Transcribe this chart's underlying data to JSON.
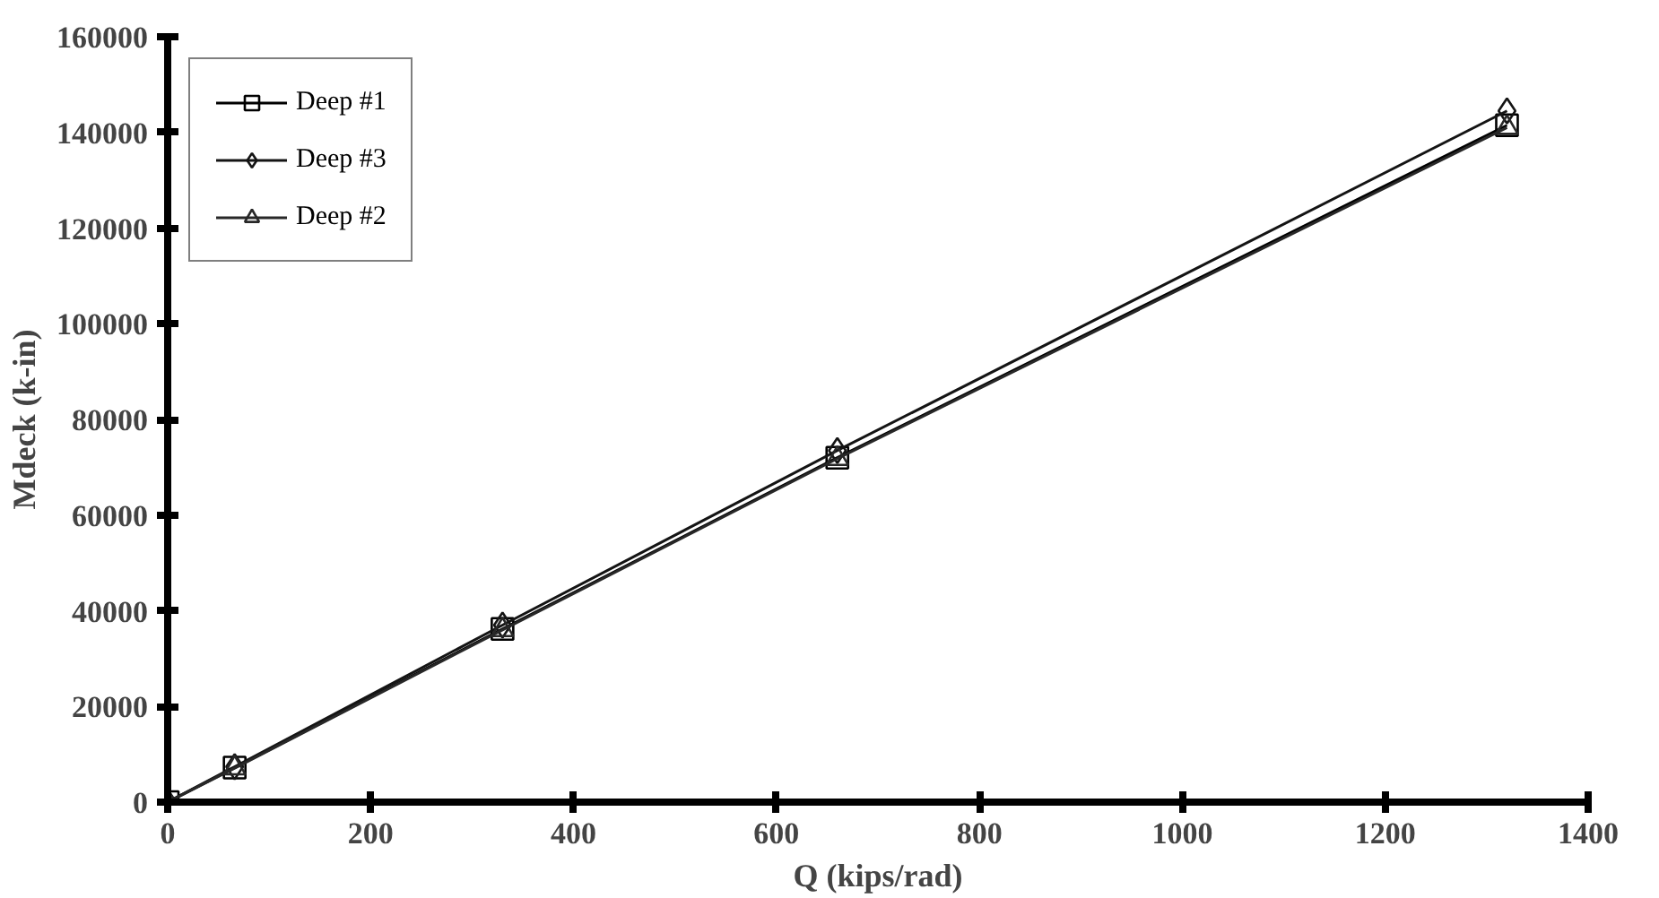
{
  "chart_data": {
    "type": "line",
    "xlabel": "Q (kips/rad)",
    "ylabel": "Mdeck (k-in)",
    "x": [
      0,
      66,
      330,
      660,
      1320
    ],
    "series": [
      {
        "name": "Deep #1",
        "color": "#000000",
        "marker": "square",
        "values": [
          0,
          7200,
          36200,
          72000,
          141500
        ]
      },
      {
        "name": "Deep #3",
        "color": "#141414",
        "marker": "diamond",
        "values": [
          0,
          7400,
          37000,
          73500,
          144500
        ]
      },
      {
        "name": "Deep #2",
        "color": "#282828",
        "marker": "triangle",
        "values": [
          0,
          7100,
          36000,
          71800,
          141000
        ]
      }
    ],
    "xlim": [
      0,
      1400
    ],
    "xticks": [
      0,
      200,
      400,
      600,
      800,
      1000,
      1200,
      1400
    ],
    "ylim": [
      0,
      160000
    ],
    "yticks": [
      0,
      20000,
      40000,
      60000,
      80000,
      100000,
      120000,
      140000,
      160000
    ],
    "grid": false,
    "legend": "top left",
    "line_style": "solid"
  }
}
